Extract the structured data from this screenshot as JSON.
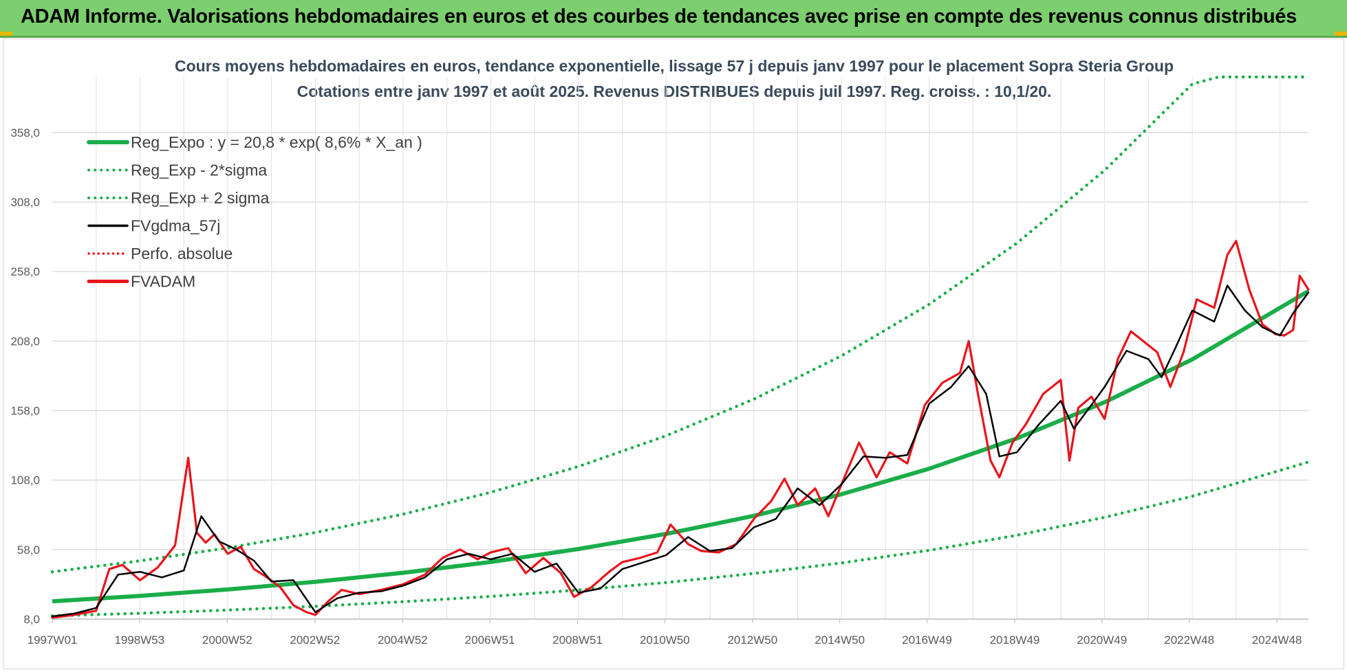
{
  "header": {
    "banner_title": "ADAM Informe. Valorisations hebdomadaires en euros et des courbes de tendances avec prise en compte des revenus connus distribués"
  },
  "colors": {
    "banner_bg": "#7ccf6e",
    "trend_green": "#1aad4a",
    "price_red": "#e8141c",
    "smooth_black": "#000000"
  },
  "chart_data": {
    "type": "line",
    "title_line1": "Cours moyens hebdomadaires en euros, tendance exponentielle, lissage 57 j depuis janv 1997 pour le placement Sopra Steria Group",
    "title_line2": "Cotations entre janv 1997 et août 2025.  Revenus DISTRIBUES depuis juil 1997.  Reg. croiss. : 10,1/20.",
    "ylim": [
      8,
      398
    ],
    "yticks": [
      "8,0",
      "58,0",
      "108,0",
      "158,0",
      "208,0",
      "258,0",
      "308,0",
      "358,0"
    ],
    "ytick_values": [
      8,
      58,
      108,
      158,
      208,
      258,
      308,
      358
    ],
    "xlim": [
      1997.0,
      2025.65
    ],
    "xticks": [
      {
        "label": "1997W01",
        "year": 1997.0
      },
      {
        "label": "1998W53",
        "year": 1998.99
      },
      {
        "label": "2000W52",
        "year": 2000.99
      },
      {
        "label": "2002W52",
        "year": 2002.99
      },
      {
        "label": "2004W52",
        "year": 2004.99
      },
      {
        "label": "2006W51",
        "year": 2006.98
      },
      {
        "label": "2008W51",
        "year": 2008.98
      },
      {
        "label": "2010W50",
        "year": 2010.97
      },
      {
        "label": "2012W50",
        "year": 2012.97
      },
      {
        "label": "2014W50",
        "year": 2014.96
      },
      {
        "label": "2016W49",
        "year": 2016.95
      },
      {
        "label": "2018W49",
        "year": 2018.95
      },
      {
        "label": "2020W49",
        "year": 2020.94
      },
      {
        "label": "2022W48",
        "year": 2022.93
      },
      {
        "label": "2024W48",
        "year": 2024.93
      }
    ],
    "grid": true,
    "legend_position": "top-left",
    "legend": [
      {
        "label": "Reg_Expo : y = 20,8 * exp( 8,6% *  X_an )",
        "color": "#1aad4a",
        "style": "solid-thick"
      },
      {
        "label": "Reg_Exp - 2*sigma",
        "color": "#1aad4a",
        "style": "dotted"
      },
      {
        "label": "Reg_Exp + 2 sigma",
        "color": "#1aad4a",
        "style": "dotted"
      },
      {
        "label": "FVgdma_57j",
        "color": "#000000",
        "style": "solid"
      },
      {
        "label": "Perfo. absolue",
        "color": "#e8141c",
        "style": "dotted"
      },
      {
        "label": "FVADAM",
        "color": "#e8141c",
        "style": "solid-thick"
      }
    ],
    "series": [
      {
        "name": "Reg_Expo : y = 20,8 * exp( 8,6% *  X_an )",
        "x": [
          1997.0,
          1999.0,
          2001.0,
          2003.0,
          2005.0,
          2007.0,
          2009.0,
          2011.0,
          2013.0,
          2015.0,
          2017.0,
          2019.0,
          2021.0,
          2023.0,
          2025.65
        ],
        "y": [
          20.8,
          24.7,
          29.3,
          34.8,
          41.3,
          49.1,
          58.4,
          69.3,
          82.3,
          97.8,
          116.2,
          138.0,
          164.0,
          194.8,
          244.0
        ]
      },
      {
        "name": "Reg_Exp - 2*sigma",
        "x": [
          1997.0,
          1999.0,
          2001.0,
          2003.0,
          2005.0,
          2007.0,
          2009.0,
          2011.0,
          2013.0,
          2015.0,
          2017.0,
          2019.0,
          2021.0,
          2023.0,
          2025.65
        ],
        "y": [
          10.3,
          12.2,
          14.5,
          17.2,
          20.5,
          24.3,
          28.9,
          34.3,
          40.8,
          48.4,
          57.5,
          68.3,
          81.2,
          96.4,
          121.0
        ]
      },
      {
        "name": "Reg_Exp + 2 sigma",
        "x": [
          1997.0,
          1999.0,
          2001.0,
          2003.0,
          2005.0,
          2007.0,
          2009.0,
          2011.0,
          2013.0,
          2015.0,
          2017.0,
          2019.0,
          2021.0,
          2023.0,
          2023.6,
          2025.65
        ],
        "y": [
          42.0,
          49.9,
          59.2,
          70.3,
          83.5,
          99.2,
          117.8,
          139.9,
          166.2,
          197.4,
          234.5,
          278.5,
          330.8,
          392.9,
          398.0,
          398.0
        ]
      },
      {
        "name": "FVgdma_57j",
        "x": [
          1997.0,
          1997.5,
          1998.0,
          1998.5,
          1999.0,
          1999.5,
          2000.0,
          2000.4,
          2000.8,
          2001.2,
          2001.6,
          2002.0,
          2002.5,
          2003.0,
          2003.5,
          2004.0,
          2004.5,
          2005.0,
          2005.5,
          2006.0,
          2006.5,
          2007.0,
          2007.5,
          2008.0,
          2008.5,
          2009.0,
          2009.5,
          2010.0,
          2010.5,
          2011.0,
          2011.5,
          2012.0,
          2012.5,
          2013.0,
          2013.5,
          2014.0,
          2014.5,
          2015.0,
          2015.5,
          2016.0,
          2016.5,
          2017.0,
          2017.5,
          2017.9,
          2018.3,
          2018.6,
          2019.0,
          2019.5,
          2020.0,
          2020.3,
          2020.7,
          2021.0,
          2021.5,
          2022.0,
          2022.3,
          2022.6,
          2023.0,
          2023.5,
          2023.8,
          2024.2,
          2024.6,
          2025.0,
          2025.3,
          2025.65
        ],
        "y": [
          10,
          12,
          16,
          40,
          42,
          38,
          43,
          82,
          64,
          58,
          50,
          35,
          36,
          13,
          23,
          27,
          28,
          32,
          38,
          51,
          55,
          51,
          55,
          42,
          48,
          27,
          30,
          44,
          49,
          54,
          67,
          57,
          59,
          74,
          80,
          102,
          90,
          105,
          125,
          124,
          126,
          163,
          175,
          190,
          170,
          125,
          128,
          148,
          165,
          145,
          162,
          175,
          201,
          195,
          182,
          202,
          230,
          222,
          248,
          230,
          218,
          212,
          228,
          243
        ]
      },
      {
        "name": "FVADAM",
        "x": [
          1997.0,
          1997.5,
          1998.0,
          1998.3,
          1998.6,
          1999.0,
          1999.4,
          1999.8,
          2000.1,
          2000.3,
          2000.5,
          2000.7,
          2001.0,
          2001.3,
          2001.6,
          2001.9,
          2002.2,
          2002.5,
          2002.8,
          2003.0,
          2003.3,
          2003.6,
          2004.0,
          2004.5,
          2005.0,
          2005.5,
          2005.9,
          2006.3,
          2006.7,
          2007.0,
          2007.4,
          2007.8,
          2008.2,
          2008.6,
          2008.9,
          2009.3,
          2009.7,
          2010.0,
          2010.4,
          2010.8,
          2011.1,
          2011.5,
          2011.8,
          2012.2,
          2012.6,
          2013.0,
          2013.4,
          2013.7,
          2014.0,
          2014.4,
          2014.7,
          2015.0,
          2015.4,
          2015.8,
          2016.1,
          2016.5,
          2016.9,
          2017.3,
          2017.7,
          2017.9,
          2018.1,
          2018.4,
          2018.6,
          2018.9,
          2019.2,
          2019.6,
          2020.0,
          2020.2,
          2020.4,
          2020.7,
          2021.0,
          2021.3,
          2021.6,
          2022.0,
          2022.2,
          2022.5,
          2022.8,
          2023.1,
          2023.5,
          2023.8,
          2024.0,
          2024.3,
          2024.6,
          2024.9,
          2025.1,
          2025.3,
          2025.45,
          2025.65
        ],
        "y": [
          9,
          11,
          14,
          44,
          47,
          36,
          45,
          61,
          124,
          70,
          63,
          69,
          55,
          60,
          44,
          38,
          31,
          18,
          13,
          11,
          21,
          29,
          26,
          29,
          33,
          40,
          52,
          58,
          51,
          56,
          59,
          41,
          52,
          41,
          24,
          31,
          42,
          49,
          52,
          56,
          76,
          62,
          57,
          56,
          62,
          80,
          93,
          109,
          90,
          102,
          82,
          105,
          135,
          110,
          128,
          120,
          162,
          178,
          185,
          208,
          172,
          122,
          110,
          135,
          148,
          170,
          180,
          122,
          160,
          168,
          152,
          195,
          215,
          205,
          200,
          175,
          200,
          238,
          232,
          270,
          280,
          245,
          220,
          213,
          212,
          216,
          255,
          245
        ]
      }
    ]
  }
}
